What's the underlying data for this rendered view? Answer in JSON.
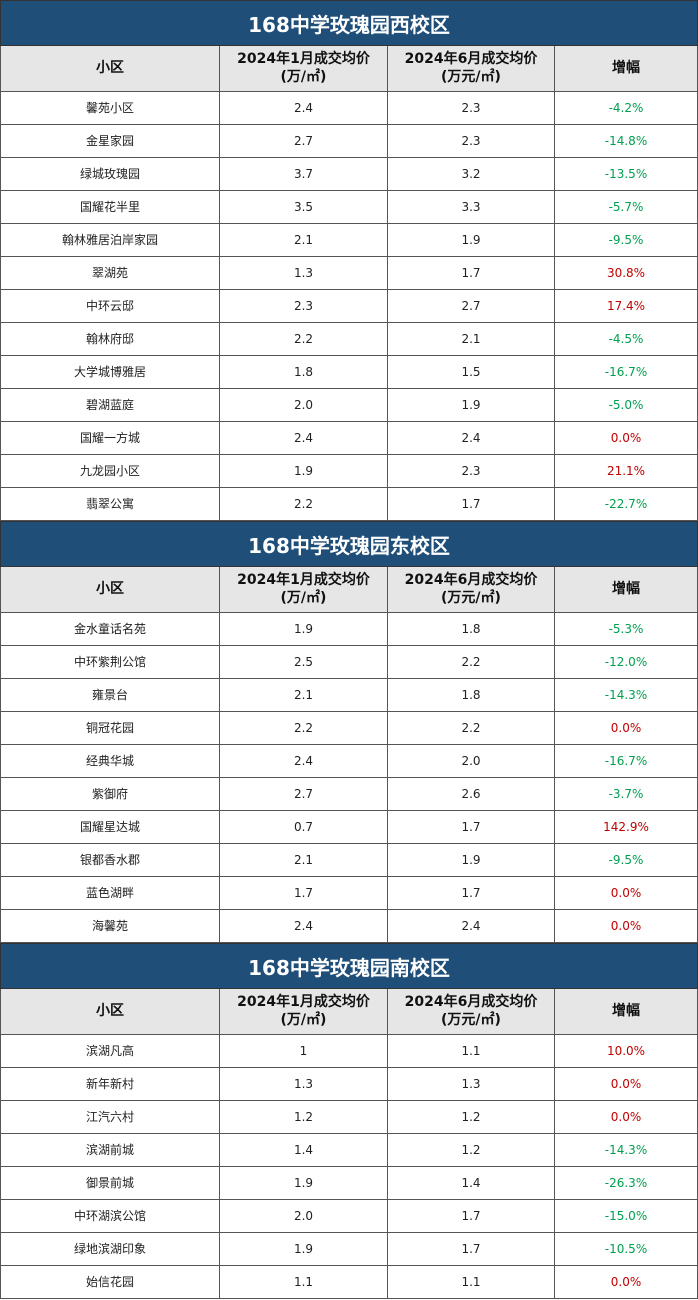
{
  "header": [
    [
      "小区"
    ],
    [
      "2024年1月成交均价",
      "(万/㎡)"
    ],
    [
      "2024年6月成交均价",
      "(万元/㎡)"
    ],
    [
      "增幅"
    ]
  ],
  "sections": [
    {
      "title": "168中学玫瑰园西校区",
      "rows": [
        [
          "馨苑小区",
          "2.4",
          "2.3",
          "-4.2%"
        ],
        [
          "金星家园",
          "2.7",
          "2.3",
          "-14.8%"
        ],
        [
          "绿城玫瑰园",
          "3.7",
          "3.2",
          "-13.5%"
        ],
        [
          "国耀花半里",
          "3.5",
          "3.3",
          "-5.7%"
        ],
        [
          "翰林雅居泊岸家园",
          "2.1",
          "1.9",
          "-9.5%"
        ],
        [
          "翠湖苑",
          "1.3",
          "1.7",
          "30.8%"
        ],
        [
          "中环云邸",
          "2.3",
          "2.7",
          "17.4%"
        ],
        [
          "翰林府邸",
          "2.2",
          "2.1",
          "-4.5%"
        ],
        [
          "大学城博雅居",
          "1.8",
          "1.5",
          "-16.7%"
        ],
        [
          "碧湖蓝庭",
          "2.0",
          "1.9",
          "-5.0%"
        ],
        [
          "国耀一方城",
          "2.4",
          "2.4",
          "0.0%"
        ],
        [
          "九龙园小区",
          "1.9",
          "2.3",
          "21.1%"
        ],
        [
          "翡翠公寓",
          "2.2",
          "1.7",
          "-22.7%"
        ]
      ]
    },
    {
      "title": "168中学玫瑰园东校区",
      "rows": [
        [
          "金水童话名苑",
          "1.9",
          "1.8",
          "-5.3%"
        ],
        [
          "中环紫荆公馆",
          "2.5",
          "2.2",
          "-12.0%"
        ],
        [
          "雍景台",
          "2.1",
          "1.8",
          "-14.3%"
        ],
        [
          "铜冠花园",
          "2.2",
          "2.2",
          "0.0%"
        ],
        [
          "经典华城",
          "2.4",
          "2.0",
          "-16.7%"
        ],
        [
          "紫御府",
          "2.7",
          "2.6",
          "-3.7%"
        ],
        [
          "国耀星达城",
          "0.7",
          "1.7",
          "142.9%"
        ],
        [
          "银都香水郡",
          "2.1",
          "1.9",
          "-9.5%"
        ],
        [
          "蓝色湖畔",
          "1.7",
          "1.7",
          "0.0%"
        ],
        [
          "海馨苑",
          "2.4",
          "2.4",
          "0.0%"
        ]
      ]
    },
    {
      "title": "168中学玫瑰园南校区",
      "rows": [
        [
          "滨湖凡高",
          "1",
          "1.1",
          "10.0%"
        ],
        [
          "新年新村",
          "1.3",
          "1.3",
          "0.0%"
        ],
        [
          "江汽六村",
          "1.2",
          "1.2",
          "0.0%"
        ],
        [
          "滨湖前城",
          "1.4",
          "1.2",
          "-14.3%"
        ],
        [
          "御景前城",
          "1.9",
          "1.4",
          "-26.3%"
        ],
        [
          "中环湖滨公馆",
          "2.0",
          "1.7",
          "-15.0%"
        ],
        [
          "绿地滨湖印象",
          "1.9",
          "1.7",
          "-10.5%"
        ],
        [
          "始信花园",
          "1.1",
          "1.1",
          "0.0%"
        ]
      ]
    }
  ]
}
